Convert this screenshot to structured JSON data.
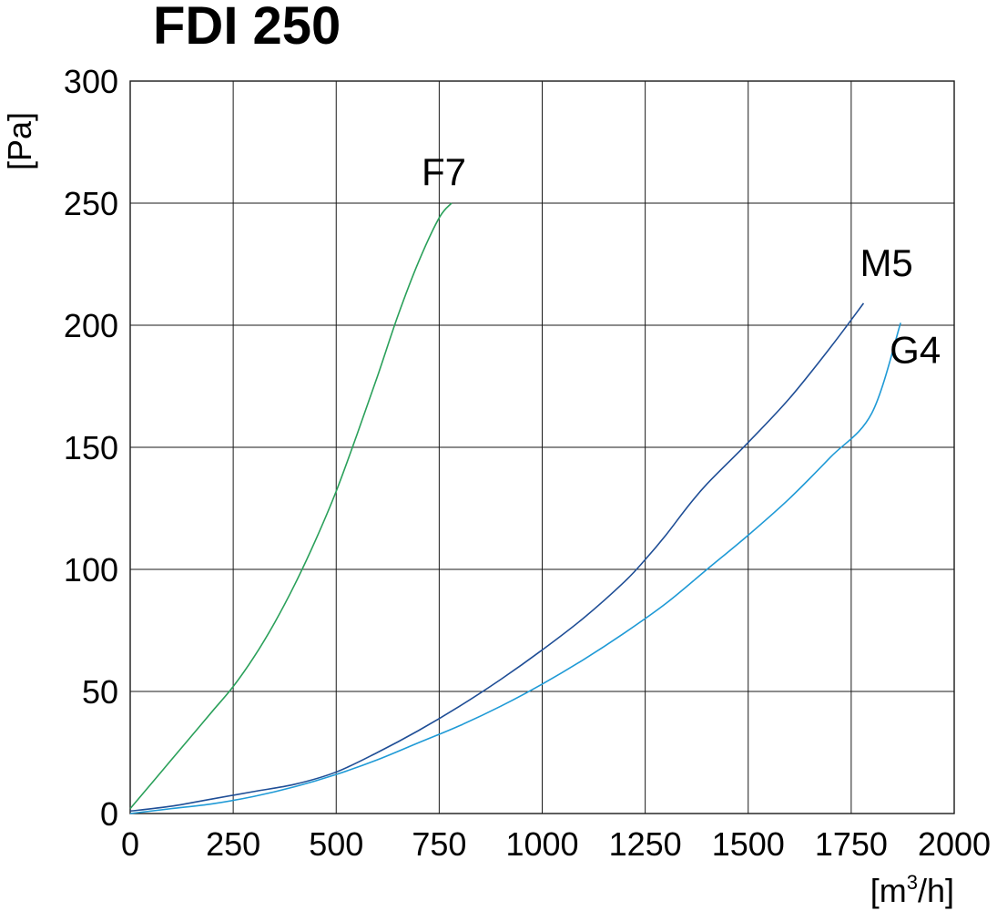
{
  "chart_data": {
    "type": "line",
    "title": "FDI 250",
    "xlabel": "[m³/h]",
    "xlabel_base": "[m",
    "xlabel_sup": "3",
    "xlabel_tail": "/h]",
    "ylabel": "[Pa]",
    "xlim": [
      0,
      2000
    ],
    "ylim": [
      0,
      300
    ],
    "x_ticks": [
      "0",
      "250",
      "500",
      "750",
      "1000",
      "1250",
      "1500",
      "1750",
      "2000"
    ],
    "y_ticks": [
      "0",
      "50",
      "100",
      "150",
      "200",
      "250",
      "300"
    ],
    "grid": true,
    "legend": "inline labels at curve ends",
    "series": [
      {
        "name": "F7",
        "color": "#2aa05a",
        "x": [
          0,
          50,
          100,
          150,
          200,
          250,
          300,
          350,
          400,
          450,
          500,
          550,
          600,
          650,
          700,
          750,
          780
        ],
        "y": [
          2,
          12,
          22,
          32,
          42,
          52,
          64,
          78,
          94,
          112,
          132,
          155,
          179,
          204,
          226,
          244,
          250
        ]
      },
      {
        "name": "M5",
        "color": "#1f4e96",
        "x": [
          0,
          100,
          200,
          300,
          400,
          500,
          600,
          700,
          800,
          900,
          1000,
          1100,
          1200,
          1250,
          1300,
          1350,
          1400,
          1500,
          1600,
          1700,
          1780
        ],
        "y": [
          1,
          3,
          6,
          9,
          12,
          17,
          25,
          34,
          44,
          55,
          67,
          80,
          95,
          104,
          114,
          125,
          135,
          152,
          170,
          191,
          209
        ]
      },
      {
        "name": "G4",
        "color": "#1f9ad6",
        "x": [
          0,
          100,
          200,
          300,
          400,
          500,
          600,
          700,
          800,
          900,
          1000,
          1100,
          1200,
          1300,
          1400,
          1500,
          1600,
          1700,
          1800,
          1870
        ],
        "y": [
          0,
          2,
          4,
          7,
          11,
          16,
          22,
          29,
          36,
          44,
          53,
          63,
          74,
          86,
          100,
          114,
          129,
          146,
          164,
          201
        ]
      }
    ]
  }
}
